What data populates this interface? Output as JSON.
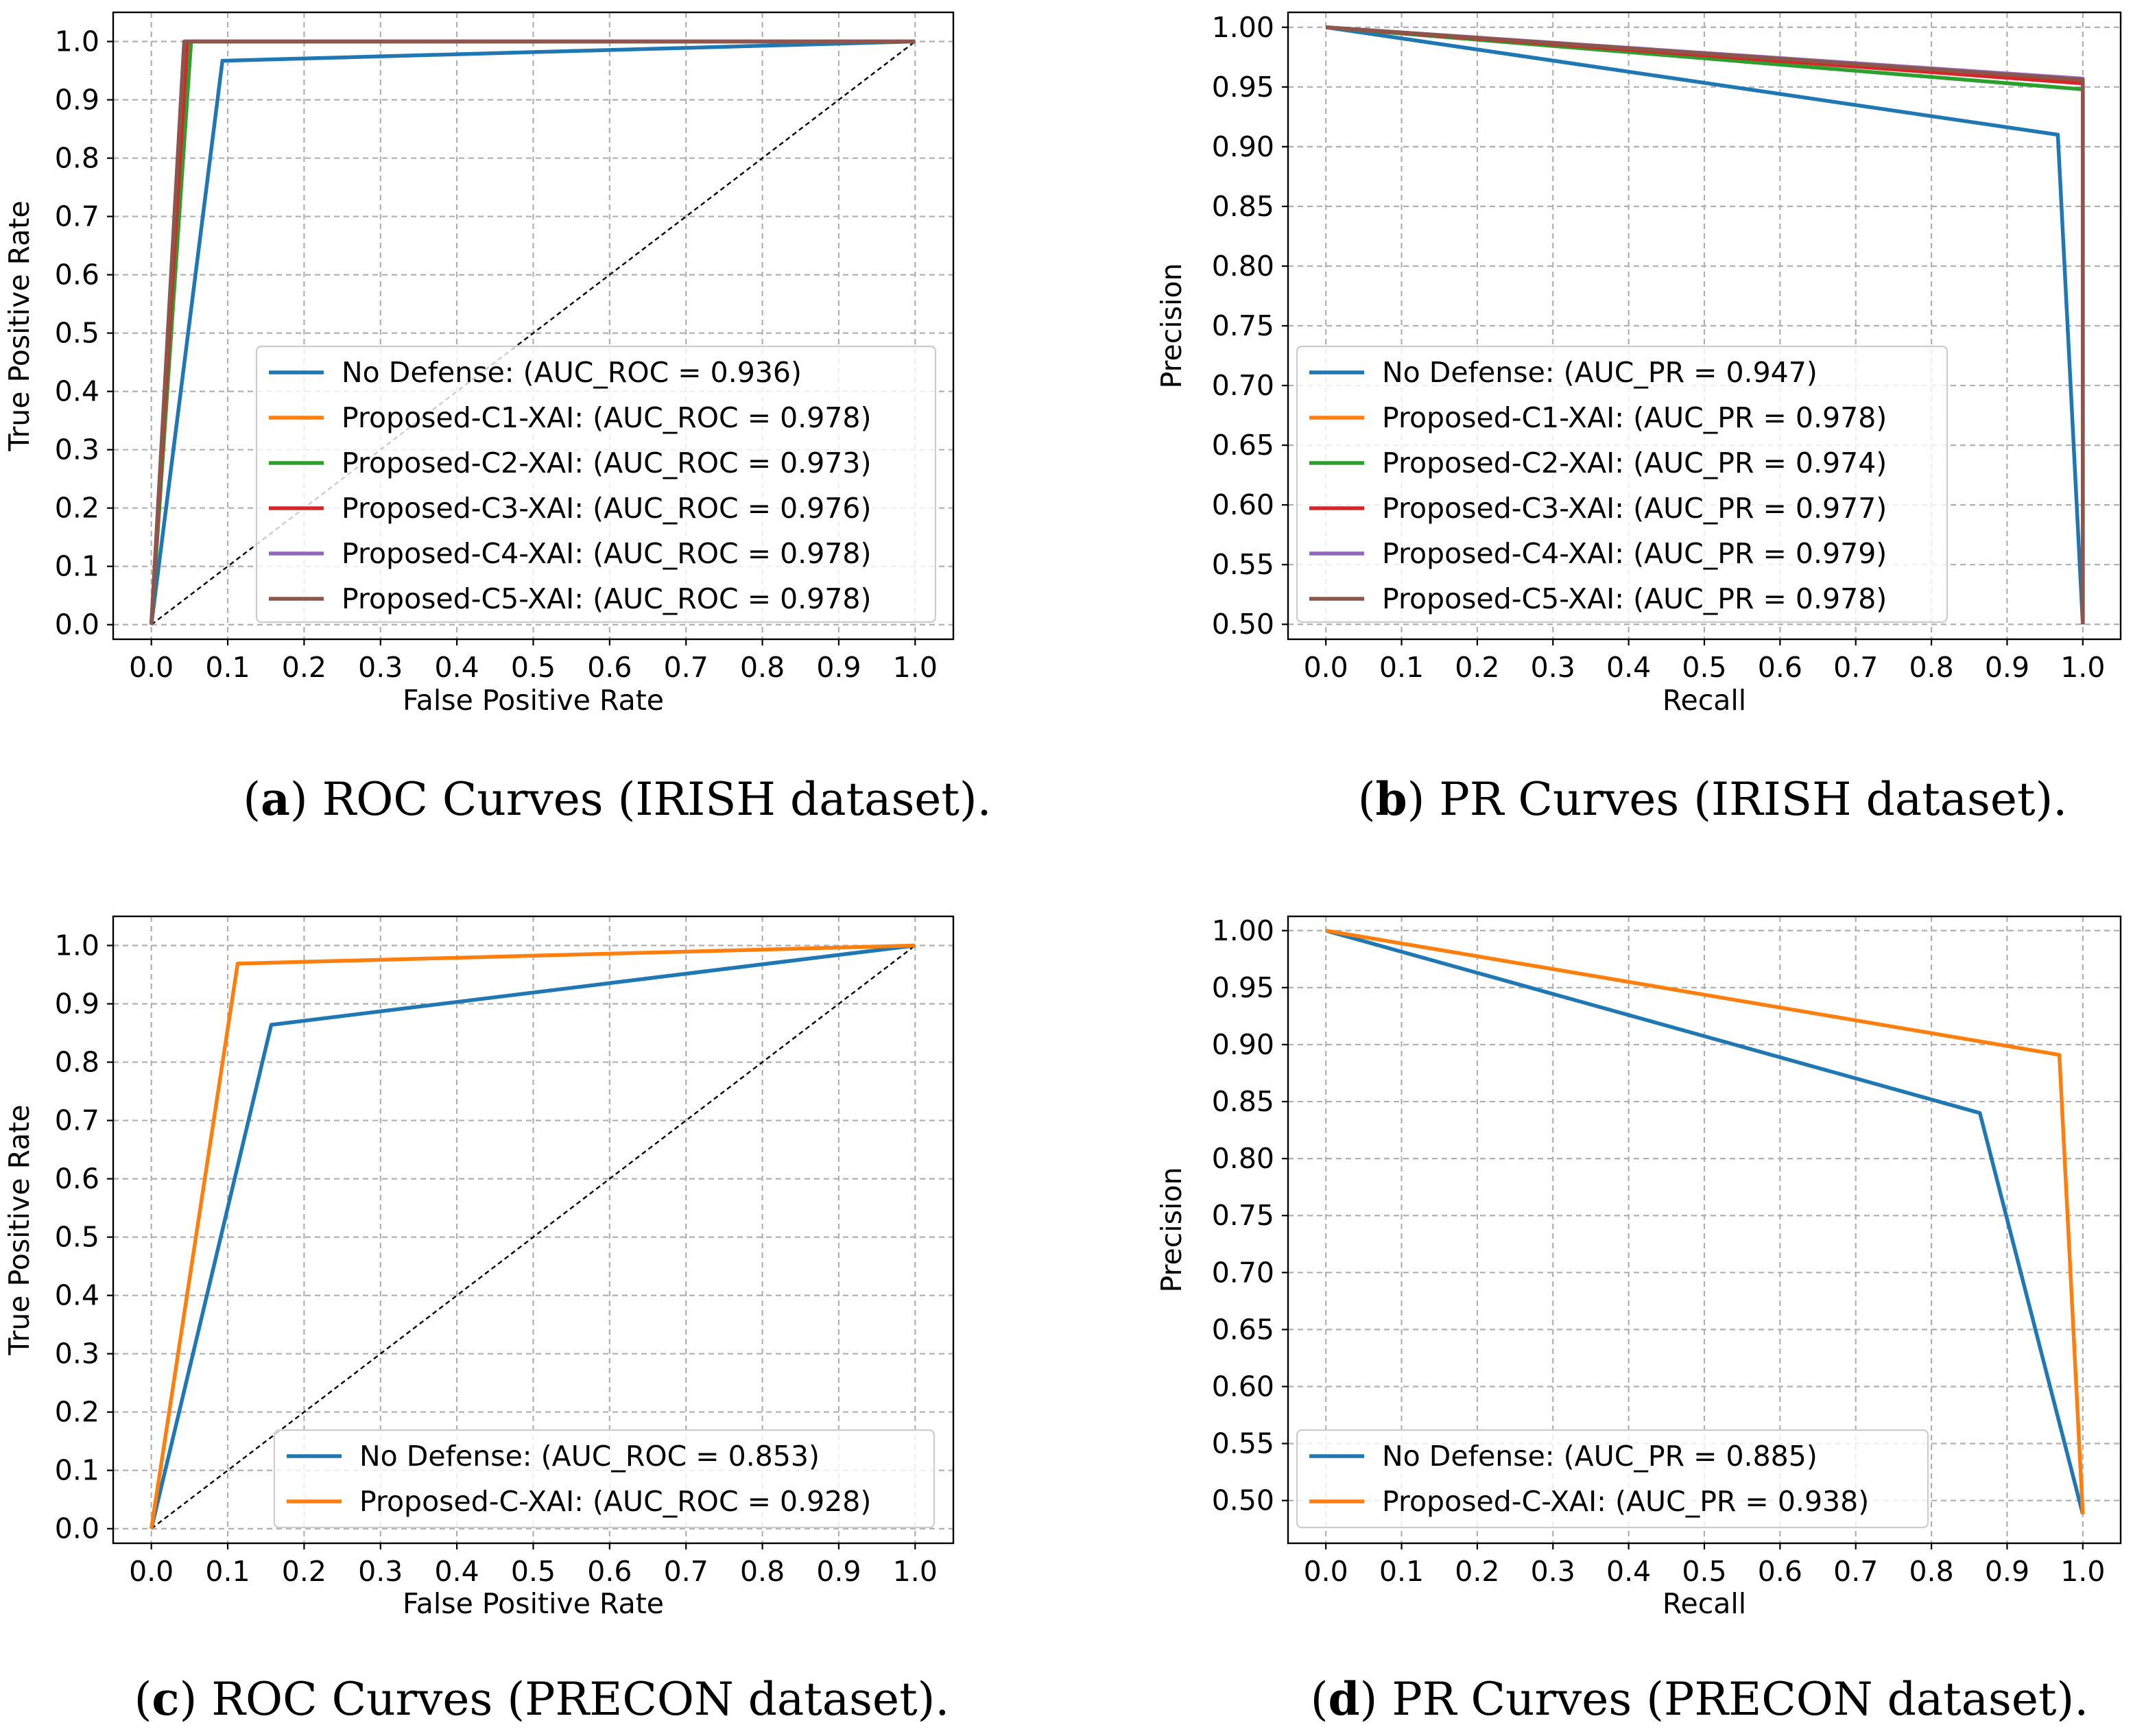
{
  "colors": {
    "c0": "#1f77b4",
    "c1": "#ff7f0e",
    "c2": "#2ca02c",
    "c3": "#d62728",
    "c4": "#9467bd",
    "c5": "#8c564b"
  },
  "chart_data": [
    {
      "id": "a",
      "type": "line",
      "caption_letter": "a",
      "caption_text": ") ROC Curves (IRISH dataset).",
      "xlabel": "False Positive Rate",
      "ylabel": "True Positive Rate",
      "xlim": [
        -0.05,
        1.05
      ],
      "ylim": [
        -0.025,
        1.05
      ],
      "xticks": [
        0.0,
        0.1,
        0.2,
        0.3,
        0.4,
        0.5,
        0.6,
        0.7,
        0.8,
        0.9,
        1.0
      ],
      "yticks": [
        0.0,
        0.1,
        0.2,
        0.3,
        0.4,
        0.5,
        0.6,
        0.7,
        0.8,
        0.9,
        1.0
      ],
      "xtick_labels": [
        "0.0",
        "0.1",
        "0.2",
        "0.3",
        "0.4",
        "0.5",
        "0.6",
        "0.7",
        "0.8",
        "0.9",
        "1.0"
      ],
      "ytick_labels": [
        "0.0",
        "0.1",
        "0.2",
        "0.3",
        "0.4",
        "0.5",
        "0.6",
        "0.7",
        "0.8",
        "0.9",
        "1.0"
      ],
      "grid": true,
      "diagonal": true,
      "legend_loc": "lower-right",
      "series": [
        {
          "name": "No Defense: (AUC_ROC = 0.936)",
          "color_key": "c0",
          "x": [
            0.0,
            0.093,
            1.0
          ],
          "y": [
            0.0,
            0.967,
            1.0
          ]
        },
        {
          "name": "Proposed-C1-XAI: (AUC_ROC = 0.978)",
          "color_key": "c1",
          "x": [
            0.0,
            0.045,
            1.0
          ],
          "y": [
            0.0,
            1.0,
            1.0
          ]
        },
        {
          "name": "Proposed-C2-XAI: (AUC_ROC = 0.973)",
          "color_key": "c2",
          "x": [
            0.0,
            0.052,
            1.0
          ],
          "y": [
            0.0,
            1.0,
            1.0
          ]
        },
        {
          "name": "Proposed-C3-XAI: (AUC_ROC = 0.976)",
          "color_key": "c3",
          "x": [
            0.0,
            0.047,
            1.0
          ],
          "y": [
            0.0,
            1.0,
            1.0
          ]
        },
        {
          "name": "Proposed-C4-XAI: (AUC_ROC = 0.978)",
          "color_key": "c4",
          "x": [
            0.0,
            0.043,
            1.0
          ],
          "y": [
            0.0,
            1.0,
            1.0
          ]
        },
        {
          "name": "Proposed-C5-XAI: (AUC_ROC = 0.978)",
          "color_key": "c5",
          "x": [
            0.0,
            0.043,
            1.0
          ],
          "y": [
            0.0,
            1.0,
            1.0
          ]
        }
      ]
    },
    {
      "id": "b",
      "type": "line",
      "caption_letter": "b",
      "caption_text": ") PR Curves (IRISH dataset).",
      "xlabel": "Recall",
      "ylabel": "Precision",
      "xlim": [
        -0.05,
        1.05
      ],
      "ylim": [
        0.4875,
        1.0125
      ],
      "xticks": [
        0.0,
        0.1,
        0.2,
        0.3,
        0.4,
        0.5,
        0.6,
        0.7,
        0.8,
        0.9,
        1.0
      ],
      "yticks": [
        0.5,
        0.55,
        0.6,
        0.65,
        0.7,
        0.75,
        0.8,
        0.85,
        0.9,
        0.95,
        1.0
      ],
      "xtick_labels": [
        "0.0",
        "0.1",
        "0.2",
        "0.3",
        "0.4",
        "0.5",
        "0.6",
        "0.7",
        "0.8",
        "0.9",
        "1.0"
      ],
      "ytick_labels": [
        "0.50",
        "0.55",
        "0.60",
        "0.65",
        "0.70",
        "0.75",
        "0.80",
        "0.85",
        "0.90",
        "0.95",
        "1.00"
      ],
      "grid": true,
      "diagonal": false,
      "legend_loc": "lower-right",
      "series": [
        {
          "name": "No Defense: (AUC_PR = 0.947)",
          "color_key": "c0",
          "x": [
            0.0,
            0.967,
            1.0
          ],
          "y": [
            1.0,
            0.91,
            0.5
          ]
        },
        {
          "name": "Proposed-C1-XAI: (AUC_PR = 0.978)",
          "color_key": "c1",
          "x": [
            0.0,
            1.0,
            1.0
          ],
          "y": [
            1.0,
            0.955,
            0.5
          ]
        },
        {
          "name": "Proposed-C2-XAI: (AUC_PR = 0.974)",
          "color_key": "c2",
          "x": [
            0.0,
            1.0,
            1.0
          ],
          "y": [
            1.0,
            0.948,
            0.5
          ]
        },
        {
          "name": "Proposed-C3-XAI: (AUC_PR = 0.977)",
          "color_key": "c3",
          "x": [
            0.0,
            1.0,
            1.0
          ],
          "y": [
            1.0,
            0.953,
            0.5
          ]
        },
        {
          "name": "Proposed-C4-XAI: (AUC_PR = 0.979)",
          "color_key": "c4",
          "x": [
            0.0,
            1.0,
            1.0
          ],
          "y": [
            1.0,
            0.957,
            0.5
          ]
        },
        {
          "name": "Proposed-C5-XAI: (AUC_PR = 0.978)",
          "color_key": "c5",
          "x": [
            0.0,
            1.0,
            1.0
          ],
          "y": [
            1.0,
            0.956,
            0.5
          ]
        }
      ]
    },
    {
      "id": "c",
      "type": "line",
      "caption_letter": "c",
      "caption_text": ") ROC Curves (PRECON dataset).",
      "xlabel": "False Positive Rate",
      "ylabel": "True Positive Rate",
      "xlim": [
        -0.05,
        1.05
      ],
      "ylim": [
        -0.025,
        1.05
      ],
      "xticks": [
        0.0,
        0.1,
        0.2,
        0.3,
        0.4,
        0.5,
        0.6,
        0.7,
        0.8,
        0.9,
        1.0
      ],
      "yticks": [
        0.0,
        0.1,
        0.2,
        0.3,
        0.4,
        0.5,
        0.6,
        0.7,
        0.8,
        0.9,
        1.0
      ],
      "xtick_labels": [
        "0.0",
        "0.1",
        "0.2",
        "0.3",
        "0.4",
        "0.5",
        "0.6",
        "0.7",
        "0.8",
        "0.9",
        "1.0"
      ],
      "ytick_labels": [
        "0.0",
        "0.1",
        "0.2",
        "0.3",
        "0.4",
        "0.5",
        "0.6",
        "0.7",
        "0.8",
        "0.9",
        "1.0"
      ],
      "grid": true,
      "diagonal": true,
      "legend_loc": "lower-right",
      "series": [
        {
          "name": "No Defense: (AUC_ROC = 0.853)",
          "color_key": "c0",
          "x": [
            0.0,
            0.157,
            1.0
          ],
          "y": [
            0.0,
            0.864,
            1.0
          ]
        },
        {
          "name": "Proposed-C-XAI: (AUC_ROC = 0.928)",
          "color_key": "c1",
          "x": [
            0.0,
            0.113,
            1.0
          ],
          "y": [
            0.0,
            0.969,
            1.0
          ]
        }
      ]
    },
    {
      "id": "d",
      "type": "line",
      "caption_letter": "d",
      "caption_text": ") PR Curves (PRECON dataset).",
      "xlabel": "Recall",
      "ylabel": "Precision",
      "xlim": [
        -0.05,
        1.05
      ],
      "ylim": [
        0.4625,
        1.0125
      ],
      "xticks": [
        0.0,
        0.1,
        0.2,
        0.3,
        0.4,
        0.5,
        0.6,
        0.7,
        0.8,
        0.9,
        1.0
      ],
      "yticks": [
        0.5,
        0.55,
        0.6,
        0.65,
        0.7,
        0.75,
        0.8,
        0.85,
        0.9,
        0.95,
        1.0
      ],
      "xtick_labels": [
        "0.0",
        "0.1",
        "0.2",
        "0.3",
        "0.4",
        "0.5",
        "0.6",
        "0.7",
        "0.8",
        "0.9",
        "1.0"
      ],
      "ytick_labels": [
        "0.50",
        "0.55",
        "0.60",
        "0.65",
        "0.70",
        "0.75",
        "0.80",
        "0.85",
        "0.90",
        "0.95",
        "1.00"
      ],
      "grid": true,
      "diagonal": false,
      "legend_loc": "lower-right",
      "series": [
        {
          "name": "No Defense: (AUC_PR = 0.885)",
          "color_key": "c0",
          "x": [
            0.0,
            0.864,
            1.0
          ],
          "y": [
            1.0,
            0.84,
            0.488
          ]
        },
        {
          "name": "Proposed-C-XAI: (AUC_PR = 0.938)",
          "color_key": "c1",
          "x": [
            0.0,
            0.969,
            1.0
          ],
          "y": [
            1.0,
            0.891,
            0.488
          ]
        }
      ]
    }
  ]
}
